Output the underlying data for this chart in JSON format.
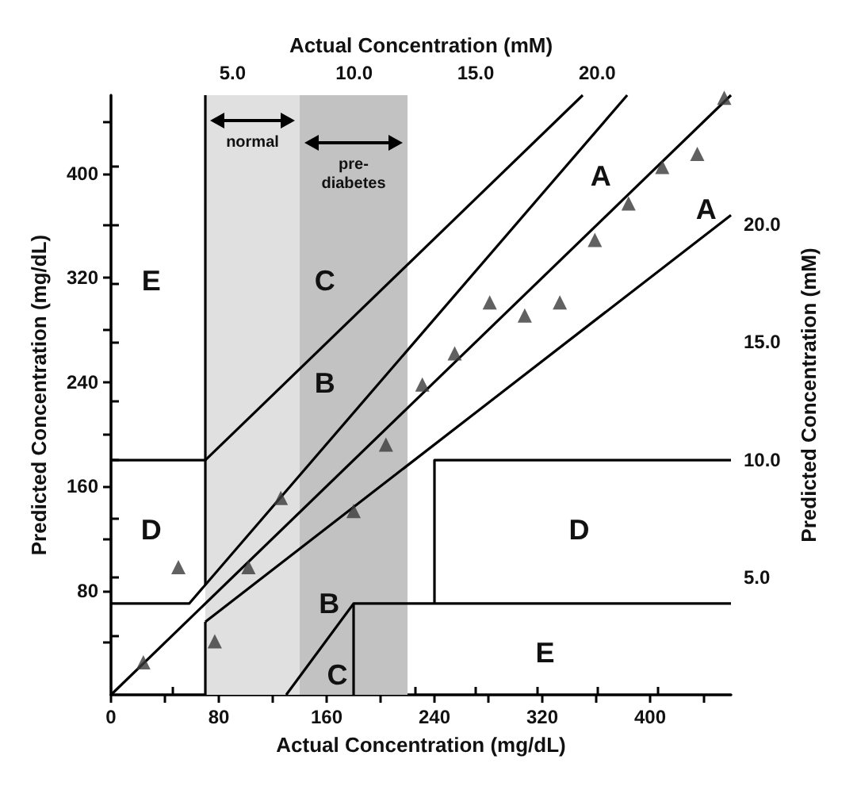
{
  "chart_data": {
    "type": "scatter",
    "xlabel": "Actual Concentration (mg/dL)",
    "x2label": "Actual Concentration (mM)",
    "ylabel": "Predicted Concentration (mg/dL)",
    "y2label": "Predicted Concentration (mM)",
    "xlim": [
      0,
      460
    ],
    "ylim": [
      0,
      460
    ],
    "x2lim": [
      0,
      25.5
    ],
    "y2lim": [
      0,
      25.5
    ],
    "xticks": [
      0,
      {
        "value": 40,
        "label": null
      },
      80,
      {
        "value": 120,
        "label": null
      },
      160,
      {
        "value": 200,
        "label": null
      },
      240,
      {
        "value": 280,
        "label": null
      },
      320,
      {
        "value": 360,
        "label": null
      },
      400,
      {
        "value": 440,
        "label": null
      }
    ],
    "yticks": [
      {
        "value": 40,
        "label": null
      },
      80,
      {
        "value": 120,
        "label": null
      },
      160,
      {
        "value": 200,
        "label": null
      },
      240,
      {
        "value": 280,
        "label": null
      },
      320,
      {
        "value": 360,
        "label": null
      },
      400,
      {
        "value": 440,
        "label": null
      }
    ],
    "x2ticks": [
      {
        "value": 2.5,
        "label": null
      },
      {
        "value": 5,
        "label": "5.0"
      },
      {
        "value": 7.5,
        "label": null
      },
      {
        "value": 10,
        "label": "10.0"
      },
      {
        "value": 12.5,
        "label": null
      },
      {
        "value": 15,
        "label": "15.0"
      },
      {
        "value": 17.5,
        "label": null
      },
      {
        "value": 20,
        "label": "20.0"
      },
      {
        "value": 22.5,
        "label": null
      }
    ],
    "y2ticks": [
      {
        "value": 2.5,
        "label": null
      },
      {
        "value": 5,
        "label": "5.0"
      },
      {
        "value": 7.5,
        "label": null
      },
      {
        "value": 10,
        "label": "10.0"
      },
      {
        "value": 12.5,
        "label": null
      },
      {
        "value": 15,
        "label": "15.0"
      },
      {
        "value": 17.5,
        "label": null
      },
      {
        "value": 20,
        "label": "20.0"
      },
      {
        "value": 22.5,
        "label": null
      }
    ],
    "grid": false,
    "marker": "triangle",
    "bands": [
      {
        "axis": "x",
        "from": 70,
        "to": 140,
        "label": "normal",
        "color": "#e0e0e0"
      },
      {
        "axis": "x",
        "from": 140,
        "to": 220,
        "label": "pre-diabetes",
        "color": "#c2c2c2"
      }
    ],
    "series": [
      {
        "color": "#3a3a3a",
        "x": [
          24,
          50,
          77,
          102,
          126,
          180,
          204,
          231,
          255,
          281,
          307,
          333,
          359,
          384,
          409,
          435,
          455
        ],
        "values": [
          25,
          98,
          41,
          98,
          151,
          141,
          192,
          238,
          262,
          301,
          291,
          301,
          349,
          377,
          405,
          415,
          458
        ]
      },
      {
        "type": "line",
        "marker": "none",
        "color": "#000000",
        "x": [
          0,
          460
        ],
        "values": [
          0,
          460
        ]
      },
      {
        "type": "line",
        "marker": "none",
        "color": "#000000",
        "x": [
          0,
          58,
          383
        ],
        "values": [
          70,
          70,
          460
        ]
      },
      {
        "type": "line",
        "marker": "none",
        "color": "#000000",
        "x": [
          70,
          350
        ],
        "values": [
          180,
          460
        ]
      },
      {
        "type": "line",
        "marker": "none",
        "color": "#000000",
        "x": [
          70,
          460
        ],
        "values": [
          56,
          368
        ]
      },
      {
        "type": "line",
        "marker": "none",
        "color": "#000000",
        "x": [
          130,
          180,
          460
        ],
        "values": [
          0,
          70,
          70
        ]
      },
      {
        "type": "line",
        "marker": "none",
        "color": "#000000",
        "x": [
          180,
          180
        ],
        "values": [
          0,
          70
        ]
      },
      {
        "type": "line",
        "marker": "none",
        "color": "#000000",
        "x": [
          240,
          240,
          460
        ],
        "values": [
          70,
          180,
          180
        ]
      },
      {
        "type": "line",
        "marker": "none",
        "color": "#000000",
        "x": [
          0,
          70,
          70
        ],
        "values": [
          180,
          180,
          460
        ]
      },
      {
        "type": "line",
        "marker": "none",
        "color": "#000000",
        "x": [
          70,
          70
        ],
        "values": [
          84,
          180
        ]
      },
      {
        "type": "line",
        "marker": "none",
        "color": "#000000",
        "x": [
          70,
          70
        ],
        "values": [
          0,
          56
        ]
      }
    ],
    "annotations": [
      "E",
      "C",
      "B",
      "A",
      "A",
      "D",
      "D",
      "B",
      "C",
      "E"
    ]
  }
}
